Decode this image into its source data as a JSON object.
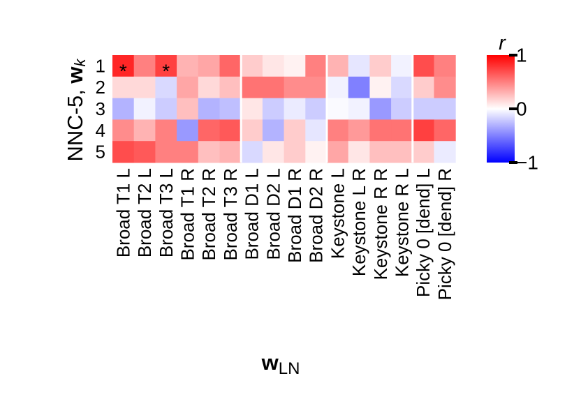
{
  "chart_data": {
    "type": "heatmap",
    "ylabel": {
      "prefix": "NNC-5, ",
      "bold": "w",
      "sub": "k"
    },
    "xlabel": {
      "bold": "w",
      "sub": "LN"
    },
    "rows": [
      "1",
      "2",
      "3",
      "4",
      "5"
    ],
    "columns": [
      "Broad T1 L",
      "Broad T2 L",
      "Broad T3 L",
      "Broad T1 R",
      "Broad T2 R",
      "Broad T3 R",
      "Broad D1 L",
      "Broad D2 L",
      "Broad D1 R",
      "Broad D2 R",
      "Keystone L",
      "Keystone L R",
      "Keystone R R",
      "Keystone R L",
      "Picky 0 [dend] L",
      "Picky 0 [dend] R"
    ],
    "column_groups": [
      6,
      4,
      4,
      2
    ],
    "values": [
      [
        0.85,
        0.5,
        0.75,
        0.3,
        0.35,
        0.6,
        0.2,
        0.1,
        0.05,
        0.5,
        0.3,
        -0.1,
        0.2,
        -0.05,
        0.7,
        0.5
      ],
      [
        0.15,
        0.15,
        -0.15,
        0.35,
        0.15,
        0.25,
        0.55,
        0.55,
        0.45,
        0.45,
        -0.05,
        -0.5,
        0.05,
        -0.15,
        0.2,
        0.45
      ],
      [
        -0.3,
        -0.05,
        -0.2,
        0.25,
        -0.3,
        -0.25,
        0.1,
        -0.2,
        -0.08,
        -0.2,
        -0.02,
        -0.05,
        -0.4,
        -0.2,
        -0.2,
        -0.2
      ],
      [
        0.45,
        0.3,
        0.5,
        -0.4,
        0.6,
        0.65,
        0.2,
        -0.3,
        0.2,
        -0.1,
        0.5,
        0.4,
        0.55,
        0.55,
        0.75,
        0.6
      ],
      [
        0.7,
        0.65,
        0.5,
        0.5,
        0.25,
        0.3,
        -0.15,
        0.1,
        0.2,
        0.05,
        0.35,
        0.1,
        0.25,
        0.25,
        0.2,
        -0.08
      ]
    ],
    "annotations": [
      {
        "row": 0,
        "col": 0,
        "text": "*"
      },
      {
        "row": 0,
        "col": 2,
        "text": "*"
      }
    ],
    "colorbar": {
      "label": "r",
      "min": -1,
      "max": 1,
      "ticks": [
        {
          "value": 1,
          "label": "1"
        },
        {
          "value": 0,
          "label": "0"
        },
        {
          "value": -1,
          "label": "−1"
        }
      ]
    },
    "colormap": {
      "negative": "#0000ff",
      "zero": "#ffffff",
      "positive": "#ff0000"
    }
  }
}
